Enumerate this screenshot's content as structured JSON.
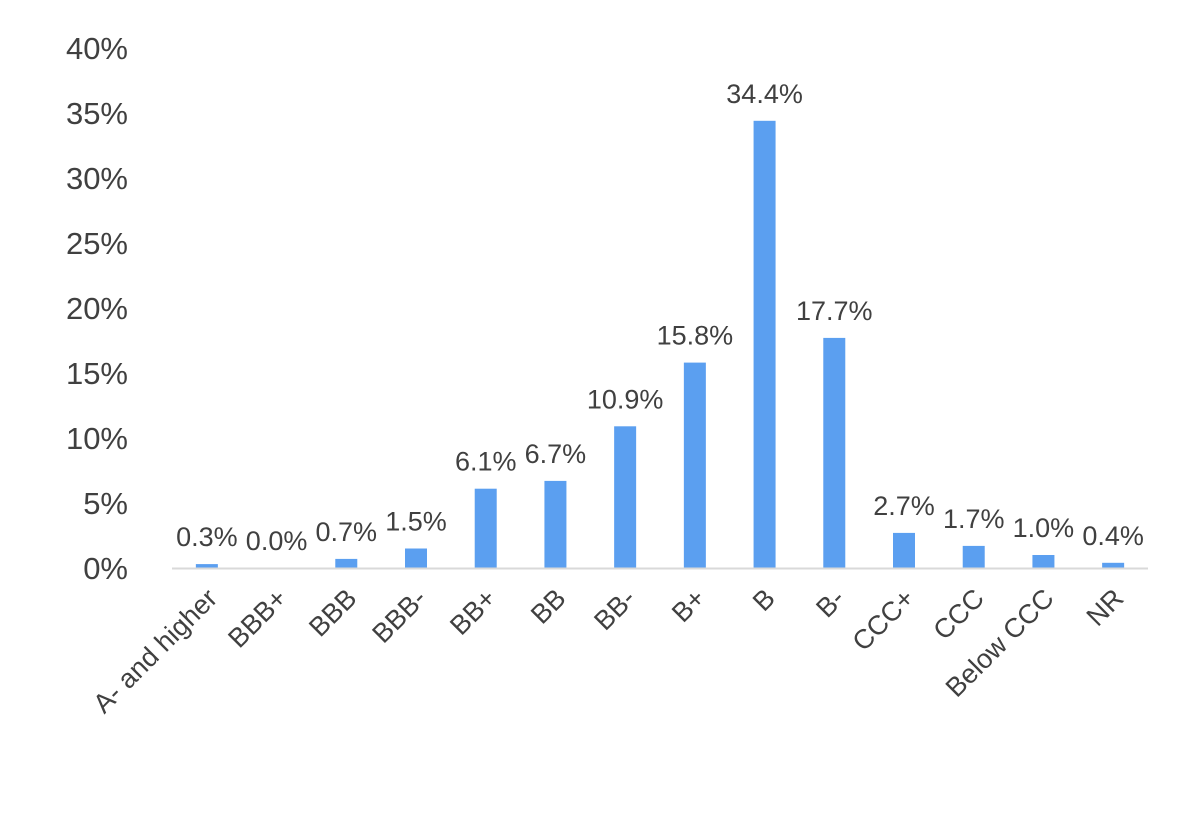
{
  "chart_data": {
    "type": "bar",
    "categories": [
      "A- and higher",
      "BBB+",
      "BBB",
      "BBB-",
      "BB+",
      "BB",
      "BB-",
      "B+",
      "B",
      "B-",
      "CCC+",
      "CCC",
      "Below CCC",
      "NR"
    ],
    "values": [
      0.3,
      0.0,
      0.7,
      1.5,
      6.1,
      6.7,
      10.9,
      15.8,
      34.4,
      17.7,
      2.7,
      1.7,
      1.0,
      0.4
    ],
    "data_labels": [
      "0.3%",
      "0.0%",
      "0.7%",
      "1.5%",
      "6.1%",
      "6.7%",
      "10.9%",
      "15.8%",
      "34.4%",
      "17.7%",
      "2.7%",
      "1.7%",
      "1.0%",
      "0.4%"
    ],
    "y_ticks": [
      0,
      5,
      10,
      15,
      20,
      25,
      30,
      35,
      40
    ],
    "y_tick_labels": [
      "0%",
      "5%",
      "10%",
      "15%",
      "20%",
      "25%",
      "30%",
      "35%",
      "40%"
    ],
    "ylim": [
      0,
      40
    ],
    "unit": "%",
    "grid": false,
    "legend": "none",
    "colors": {
      "bar": "#5b9ff0",
      "text": "#404040",
      "axis": "#d9d9d9"
    }
  }
}
